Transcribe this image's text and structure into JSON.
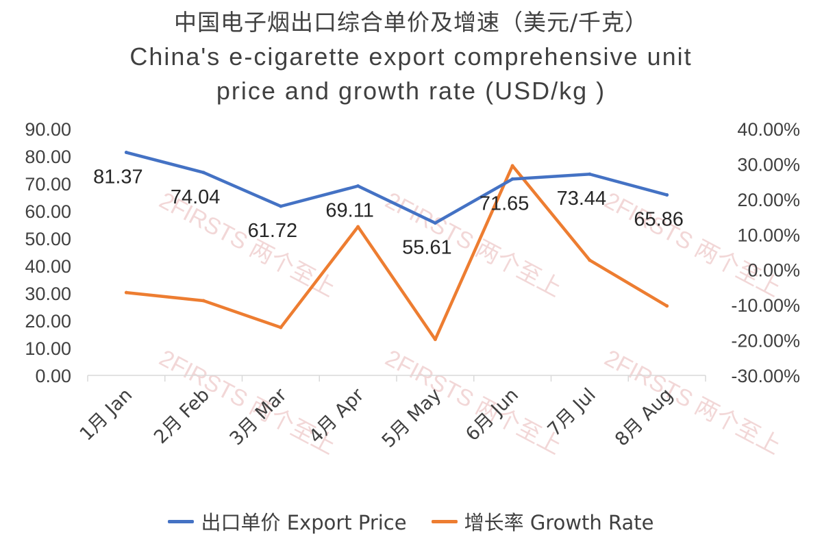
{
  "title": {
    "zh": "中国电子烟出口综合单价及增速（美元/千克）",
    "en_line1": "China's e-cigarette export comprehensive unit",
    "en_line2": "price and growth rate (USD/kg )"
  },
  "watermark": "2FIRSTS 两个至上",
  "legend": {
    "price_label": "出口单价 Export Price",
    "growth_label": "增长率 Growth Rate"
  },
  "colors": {
    "price": "#4472C4",
    "growth": "#ED7D31",
    "axis": "#D9D9D9"
  },
  "chart_data": {
    "type": "line",
    "categories": [
      "1月 Jan",
      "2月 Feb",
      "3月 Mar",
      "4月 Apr",
      "5月 May",
      "6月 Jun",
      "7月 Jul",
      "8月 Aug"
    ],
    "series": [
      {
        "name": "出口单价 Export Price",
        "axis": "left",
        "values": [
          81.37,
          74.04,
          61.72,
          69.11,
          55.61,
          71.65,
          73.44,
          65.86
        ],
        "data_labels": [
          "81.37",
          "74.04",
          "61.72",
          "69.11",
          "55.61",
          "71.65",
          "73.44",
          "65.86"
        ]
      },
      {
        "name": "增长率 Growth Rate",
        "axis": "right",
        "values": [
          -6.5,
          -8.8,
          -16.4,
          12.2,
          -19.8,
          29.5,
          2.7,
          -10.3
        ]
      }
    ],
    "y_left": {
      "min": 0,
      "max": 90,
      "step": 10,
      "tick_labels": [
        "0.00",
        "10.00",
        "20.00",
        "30.00",
        "40.00",
        "50.00",
        "60.00",
        "70.00",
        "80.00",
        "90.00"
      ]
    },
    "y_right": {
      "min": -30,
      "max": 40,
      "step": 10,
      "tick_labels": [
        "-30.00%",
        "-20.00%",
        "-10.00%",
        "0.00%",
        "10.00%",
        "20.00%",
        "30.00%",
        "40.00%"
      ]
    },
    "grid": false,
    "legend_position": "bottom"
  }
}
